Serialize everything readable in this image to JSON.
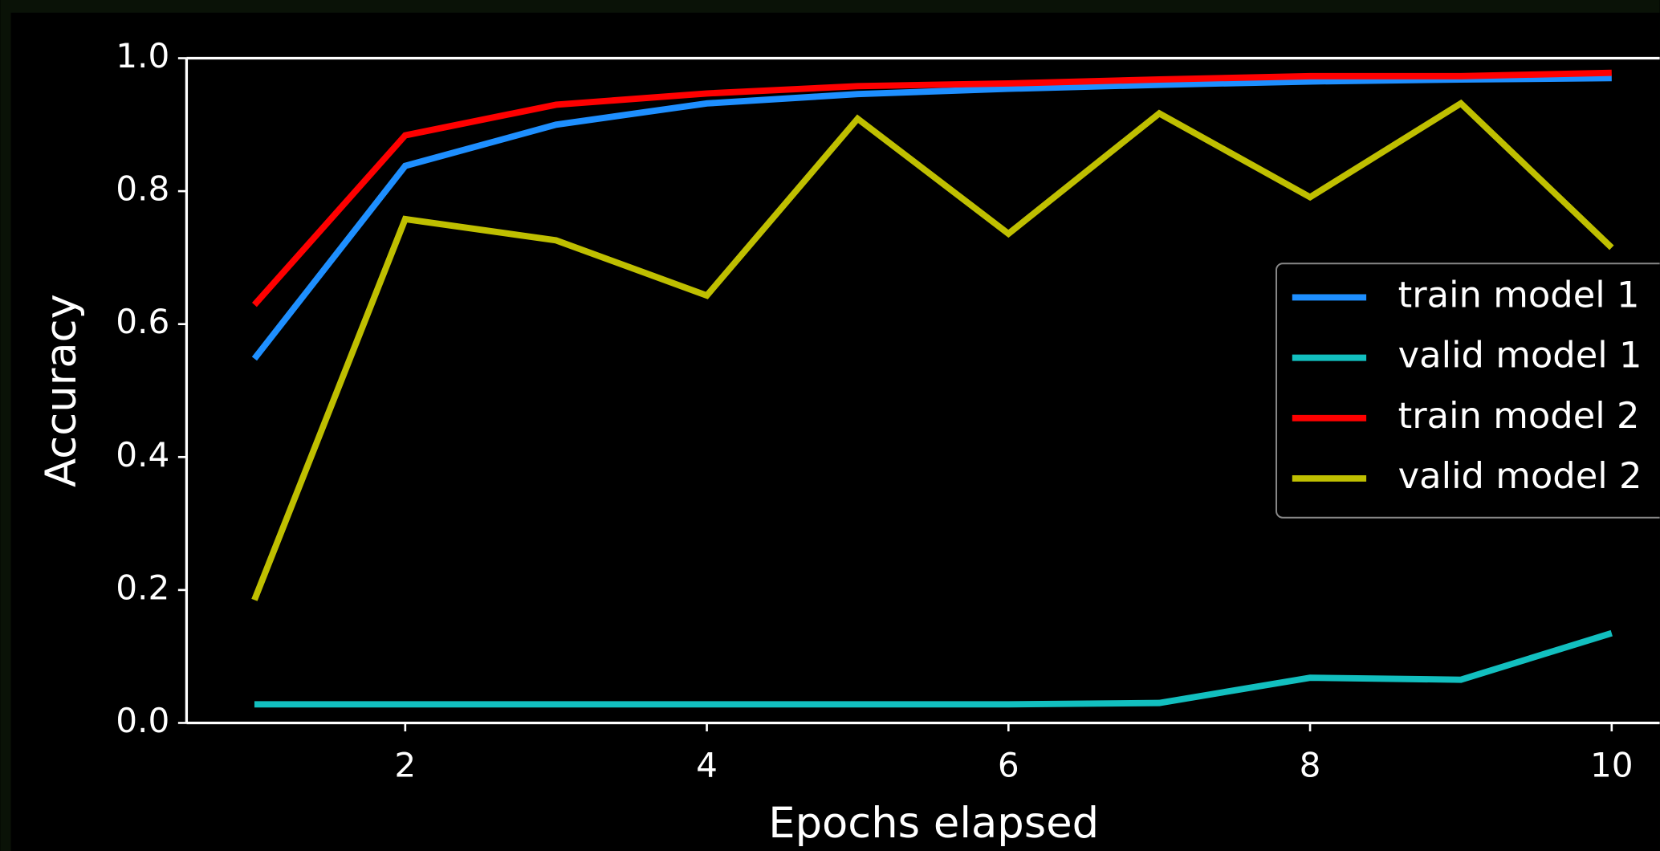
{
  "chart_data": {
    "type": "line",
    "xlabel": "Epochs elapsed",
    "ylabel": "Accuracy",
    "x": [
      1,
      2,
      3,
      4,
      5,
      6,
      7,
      8,
      9,
      10
    ],
    "series": [
      {
        "name": "train model 1",
        "color": "#1e8fff",
        "values": [
          0.548,
          0.838,
          0.9,
          0.932,
          0.946,
          0.954,
          0.96,
          0.965,
          0.968,
          0.97
        ]
      },
      {
        "name": "valid model 1",
        "color": "#12bfbf",
        "values": [
          0.028,
          0.028,
          0.028,
          0.028,
          0.028,
          0.028,
          0.03,
          0.068,
          0.065,
          0.135
        ]
      },
      {
        "name": "train model 2",
        "color": "#ff0000",
        "values": [
          0.629,
          0.884,
          0.93,
          0.947,
          0.958,
          0.962,
          0.968,
          0.973,
          0.973,
          0.978
        ]
      },
      {
        "name": "valid model 2",
        "color": "#bfbf00",
        "values": [
          0.185,
          0.758,
          0.726,
          0.643,
          0.909,
          0.736,
          0.917,
          0.791,
          0.932,
          0.715
        ]
      }
    ],
    "xlim": [
      0.55,
      10.45
    ],
    "xticks": [
      2,
      4,
      6,
      8,
      10
    ],
    "ylim": [
      0,
      1
    ],
    "yticks": [
      {
        "value": 0,
        "label": "0.0"
      },
      0.2,
      0.4,
      0.6,
      0.8,
      {
        "value": 1,
        "label": "1.0"
      }
    ],
    "grid": false,
    "legend": "center right"
  }
}
